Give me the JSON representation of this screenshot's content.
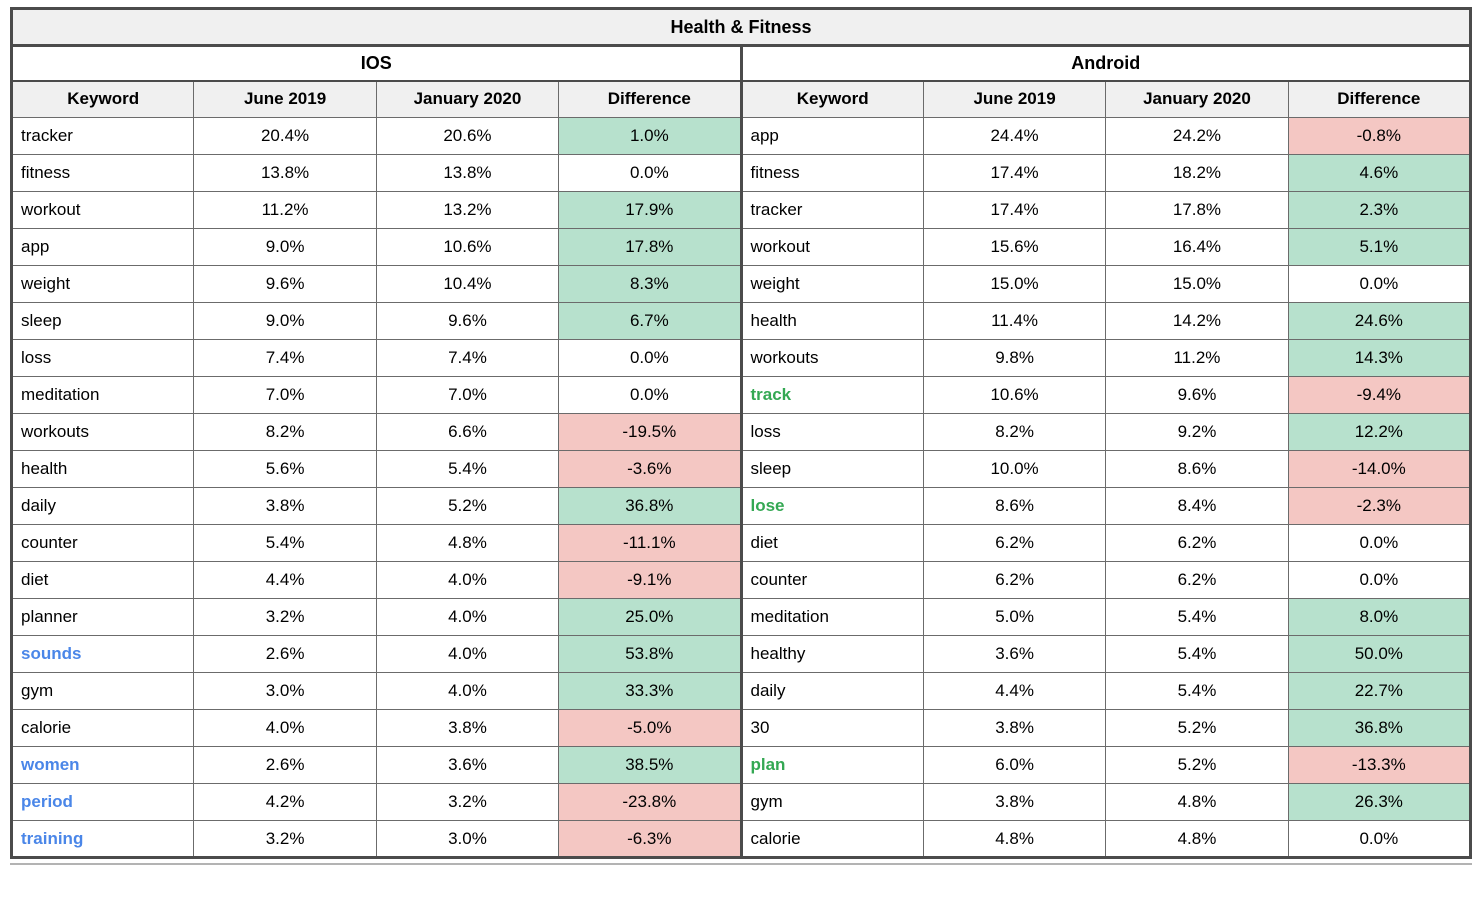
{
  "colors": {
    "positive_bg": "#b7e1cd",
    "negative_bg": "#f4c7c3",
    "header_bg": "#f0f0f0",
    "border_dark": "#4b4b4b",
    "border_mid": "#6b6b6b",
    "keyword_blue": "#4a86e8",
    "keyword_green": "#34a853",
    "text": "#000000"
  },
  "chart_data": {
    "type": "table",
    "title": "Health & Fitness",
    "columns": [
      "Keyword",
      "June 2019",
      "January 2020",
      "Difference"
    ],
    "cell_color_semantics": {
      "positive": "green background #b7e1cd",
      "negative": "red background #f4c7c3",
      "zero": "white background"
    },
    "sections": [
      {
        "platform": "IOS",
        "rows": [
          {
            "keyword": "tracker",
            "keyword_style": "default",
            "june_2019": "20.4%",
            "january_2020": "20.6%",
            "difference": "1.0%",
            "trend": "positive"
          },
          {
            "keyword": "fitness",
            "keyword_style": "default",
            "june_2019": "13.8%",
            "january_2020": "13.8%",
            "difference": "0.0%",
            "trend": "zero"
          },
          {
            "keyword": "workout",
            "keyword_style": "default",
            "june_2019": "11.2%",
            "january_2020": "13.2%",
            "difference": "17.9%",
            "trend": "positive"
          },
          {
            "keyword": "app",
            "keyword_style": "default",
            "june_2019": "9.0%",
            "january_2020": "10.6%",
            "difference": "17.8%",
            "trend": "positive"
          },
          {
            "keyword": "weight",
            "keyword_style": "default",
            "june_2019": "9.6%",
            "january_2020": "10.4%",
            "difference": "8.3%",
            "trend": "positive"
          },
          {
            "keyword": "sleep",
            "keyword_style": "default",
            "june_2019": "9.0%",
            "january_2020": "9.6%",
            "difference": "6.7%",
            "trend": "positive"
          },
          {
            "keyword": "loss",
            "keyword_style": "default",
            "june_2019": "7.4%",
            "january_2020": "7.4%",
            "difference": "0.0%",
            "trend": "zero"
          },
          {
            "keyword": "meditation",
            "keyword_style": "default",
            "june_2019": "7.0%",
            "january_2020": "7.0%",
            "difference": "0.0%",
            "trend": "zero"
          },
          {
            "keyword": "workouts",
            "keyword_style": "default",
            "june_2019": "8.2%",
            "january_2020": "6.6%",
            "difference": "-19.5%",
            "trend": "negative"
          },
          {
            "keyword": "health",
            "keyword_style": "default",
            "june_2019": "5.6%",
            "january_2020": "5.4%",
            "difference": "-3.6%",
            "trend": "negative"
          },
          {
            "keyword": "daily",
            "keyword_style": "default",
            "june_2019": "3.8%",
            "january_2020": "5.2%",
            "difference": "36.8%",
            "trend": "positive"
          },
          {
            "keyword": "counter",
            "keyword_style": "default",
            "june_2019": "5.4%",
            "january_2020": "4.8%",
            "difference": "-11.1%",
            "trend": "negative"
          },
          {
            "keyword": "diet",
            "keyword_style": "default",
            "june_2019": "4.4%",
            "january_2020": "4.0%",
            "difference": "-9.1%",
            "trend": "negative"
          },
          {
            "keyword": "planner",
            "keyword_style": "default",
            "june_2019": "3.2%",
            "january_2020": "4.0%",
            "difference": "25.0%",
            "trend": "positive"
          },
          {
            "keyword": "sounds",
            "keyword_style": "blue",
            "june_2019": "2.6%",
            "january_2020": "4.0%",
            "difference": "53.8%",
            "trend": "positive"
          },
          {
            "keyword": "gym",
            "keyword_style": "default",
            "june_2019": "3.0%",
            "january_2020": "4.0%",
            "difference": "33.3%",
            "trend": "positive"
          },
          {
            "keyword": "calorie",
            "keyword_style": "default",
            "june_2019": "4.0%",
            "january_2020": "3.8%",
            "difference": "-5.0%",
            "trend": "negative"
          },
          {
            "keyword": "women",
            "keyword_style": "blue",
            "june_2019": "2.6%",
            "january_2020": "3.6%",
            "difference": "38.5%",
            "trend": "positive"
          },
          {
            "keyword": "period",
            "keyword_style": "blue",
            "june_2019": "4.2%",
            "january_2020": "3.2%",
            "difference": "-23.8%",
            "trend": "negative"
          },
          {
            "keyword": "training",
            "keyword_style": "blue",
            "june_2019": "3.2%",
            "january_2020": "3.0%",
            "difference": "-6.3%",
            "trend": "negative"
          }
        ]
      },
      {
        "platform": "Android",
        "rows": [
          {
            "keyword": "app",
            "keyword_style": "default",
            "june_2019": "24.4%",
            "january_2020": "24.2%",
            "difference": "-0.8%",
            "trend": "negative"
          },
          {
            "keyword": "fitness",
            "keyword_style": "default",
            "june_2019": "17.4%",
            "january_2020": "18.2%",
            "difference": "4.6%",
            "trend": "positive"
          },
          {
            "keyword": "tracker",
            "keyword_style": "default",
            "june_2019": "17.4%",
            "january_2020": "17.8%",
            "difference": "2.3%",
            "trend": "positive"
          },
          {
            "keyword": "workout",
            "keyword_style": "default",
            "june_2019": "15.6%",
            "january_2020": "16.4%",
            "difference": "5.1%",
            "trend": "positive"
          },
          {
            "keyword": "weight",
            "keyword_style": "default",
            "june_2019": "15.0%",
            "january_2020": "15.0%",
            "difference": "0.0%",
            "trend": "zero"
          },
          {
            "keyword": "health",
            "keyword_style": "default",
            "june_2019": "11.4%",
            "january_2020": "14.2%",
            "difference": "24.6%",
            "trend": "positive"
          },
          {
            "keyword": "workouts",
            "keyword_style": "default",
            "june_2019": "9.8%",
            "january_2020": "11.2%",
            "difference": "14.3%",
            "trend": "positive"
          },
          {
            "keyword": "track",
            "keyword_style": "green",
            "june_2019": "10.6%",
            "january_2020": "9.6%",
            "difference": "-9.4%",
            "trend": "negative"
          },
          {
            "keyword": "loss",
            "keyword_style": "default",
            "june_2019": "8.2%",
            "january_2020": "9.2%",
            "difference": "12.2%",
            "trend": "positive"
          },
          {
            "keyword": "sleep",
            "keyword_style": "default",
            "june_2019": "10.0%",
            "january_2020": "8.6%",
            "difference": "-14.0%",
            "trend": "negative"
          },
          {
            "keyword": "lose",
            "keyword_style": "green",
            "june_2019": "8.6%",
            "january_2020": "8.4%",
            "difference": "-2.3%",
            "trend": "negative"
          },
          {
            "keyword": "diet",
            "keyword_style": "default",
            "june_2019": "6.2%",
            "january_2020": "6.2%",
            "difference": "0.0%",
            "trend": "zero"
          },
          {
            "keyword": "counter",
            "keyword_style": "default",
            "june_2019": "6.2%",
            "january_2020": "6.2%",
            "difference": "0.0%",
            "trend": "zero"
          },
          {
            "keyword": "meditation",
            "keyword_style": "default",
            "june_2019": "5.0%",
            "january_2020": "5.4%",
            "difference": "8.0%",
            "trend": "positive"
          },
          {
            "keyword": "healthy",
            "keyword_style": "default",
            "june_2019": "3.6%",
            "january_2020": "5.4%",
            "difference": "50.0%",
            "trend": "positive"
          },
          {
            "keyword": "daily",
            "keyword_style": "default",
            "june_2019": "4.4%",
            "january_2020": "5.4%",
            "difference": "22.7%",
            "trend": "positive"
          },
          {
            "keyword": "30",
            "keyword_style": "default",
            "june_2019": "3.8%",
            "january_2020": "5.2%",
            "difference": "36.8%",
            "trend": "positive"
          },
          {
            "keyword": "plan",
            "keyword_style": "green",
            "june_2019": "6.0%",
            "january_2020": "5.2%",
            "difference": "-13.3%",
            "trend": "negative"
          },
          {
            "keyword": "gym",
            "keyword_style": "default",
            "june_2019": "3.8%",
            "january_2020": "4.8%",
            "difference": "26.3%",
            "trend": "positive"
          },
          {
            "keyword": "calorie",
            "keyword_style": "default",
            "june_2019": "4.8%",
            "january_2020": "4.8%",
            "difference": "0.0%",
            "trend": "zero"
          }
        ]
      }
    ]
  }
}
